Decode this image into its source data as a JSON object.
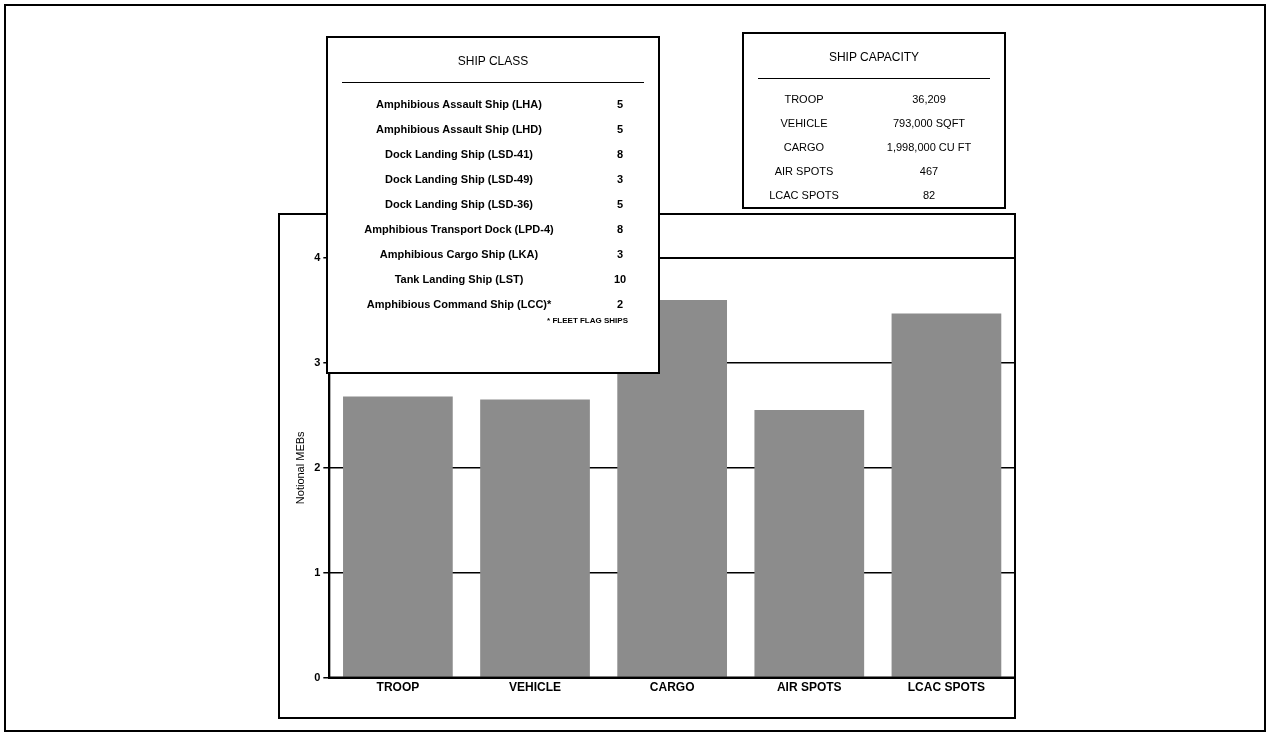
{
  "chart_data": {
    "type": "bar",
    "ylabel": "Notional MEBs",
    "categories": [
      "TROOP",
      "VEHICLE",
      "CARGO",
      "AIR SPOTS",
      "LCAC SPOTS"
    ],
    "values": [
      2.68,
      2.65,
      3.6,
      2.55,
      3.47
    ],
    "color": "#8c8c8c",
    "ylim": [
      0,
      4
    ],
    "yticks": [
      0,
      1,
      2,
      3,
      4
    ],
    "grid": "y",
    "legend": false,
    "annotations": [
      "SHIP CLASS",
      "Amphibious Assault Ship (LHA)",
      "5",
      "Amphibious Assault Ship (LHD)",
      "5",
      "Dock Landing Ship (LSD-41)",
      "8",
      "Dock Landing Ship (LSD-49)",
      "3",
      "Dock Landing Ship (LSD-36)",
      "5",
      "Amphibious Transport Dock (LPD-4)",
      "8",
      "Amphibious Cargo Ship (LKA)",
      "3",
      "Tank Landing Ship (LST)",
      "10",
      "Amphibious Command Ship (LCC)*",
      "2",
      "* FLEET FLAG SHIPS",
      "SHIP CAPACITY",
      "TROOP",
      "36,209",
      "VEHICLE",
      "793,000 SQFT",
      "CARGO",
      "1,998,000 CU FT",
      "AIR SPOTS",
      "467",
      "LCAC SPOTS",
      "82"
    ]
  }
}
